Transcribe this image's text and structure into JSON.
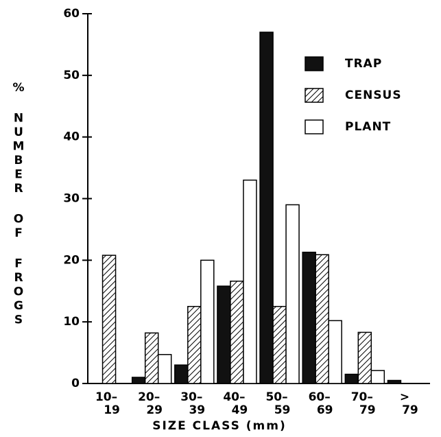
{
  "chart_data": {
    "type": "bar",
    "xlabel": "SIZE CLASS (mm)",
    "ylabel": "% NUMBER OF FROGS",
    "categories": [
      "10–\n19",
      "20–\n29",
      "30–\n39",
      "40–\n49",
      "50–\n59",
      "60–\n69",
      "70–\n79",
      ">\n79"
    ],
    "series": [
      {
        "name": "TRAP",
        "color": "#111111",
        "values": [
          0,
          1,
          3,
          15.8,
          57,
          21.3,
          1.5,
          0.5
        ]
      },
      {
        "name": "CENSUS",
        "color": "#000000",
        "hatch": true,
        "values": [
          20.8,
          8.2,
          12.5,
          16.6,
          12.5,
          20.9,
          8.3,
          0
        ]
      },
      {
        "name": "PLANT",
        "color": "#ffffff",
        "values": [
          0,
          4.7,
          20,
          33,
          29,
          10.2,
          2.1,
          0
        ]
      }
    ],
    "ylim": [
      0,
      60
    ],
    "yticks": [
      0,
      10,
      20,
      30,
      40,
      50,
      60
    ],
    "grid": false,
    "legend": "upper right"
  }
}
